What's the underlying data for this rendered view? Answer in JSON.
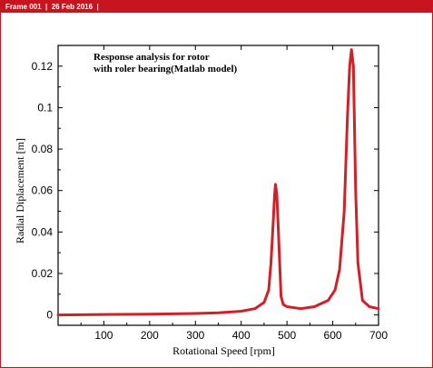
{
  "header": {
    "frame_label": "Frame 001  |  26 Feb 2016  |"
  },
  "colors": {
    "accent": "#c8141e",
    "line": "#d02028",
    "axes": "#000000"
  },
  "chart_data": {
    "type": "line",
    "title_lines": [
      "Response analysis for rotor",
      "with roler bearing(Matlab model)"
    ],
    "xlabel": "Rotational Speed [rpm]",
    "ylabel": "Radial Diplacement [m]",
    "xlim": [
      0,
      700
    ],
    "ylim": [
      -0.005,
      0.13
    ],
    "xticks": [
      100,
      200,
      300,
      400,
      500,
      600,
      700
    ],
    "yticks": [
      0,
      0.02,
      0.04,
      0.06,
      0.08,
      0.1,
      0.12
    ],
    "xtick_labels": [
      "100",
      "200",
      "300",
      "400",
      "500",
      "600",
      "700"
    ],
    "ytick_labels": [
      "0",
      "0.02",
      "0.04",
      "0.06",
      "0.08",
      "0.1",
      "0.12"
    ],
    "grid": false,
    "series": [
      {
        "x": [
          0,
          100,
          200,
          300,
          350,
          400,
          430,
          450,
          460,
          465,
          470,
          473,
          475,
          478,
          482,
          487,
          492,
          500,
          530,
          560,
          590,
          605,
          615,
          625,
          632,
          637,
          641,
          645,
          650,
          655,
          665,
          680,
          700
        ],
        "y": [
          0,
          0.0002,
          0.0004,
          0.0007,
          0.001,
          0.0018,
          0.003,
          0.006,
          0.012,
          0.025,
          0.045,
          0.058,
          0.063,
          0.058,
          0.036,
          0.009,
          0.005,
          0.004,
          0.003,
          0.004,
          0.007,
          0.012,
          0.022,
          0.05,
          0.095,
          0.12,
          0.128,
          0.12,
          0.06,
          0.025,
          0.007,
          0.004,
          0.003
        ]
      }
    ]
  }
}
